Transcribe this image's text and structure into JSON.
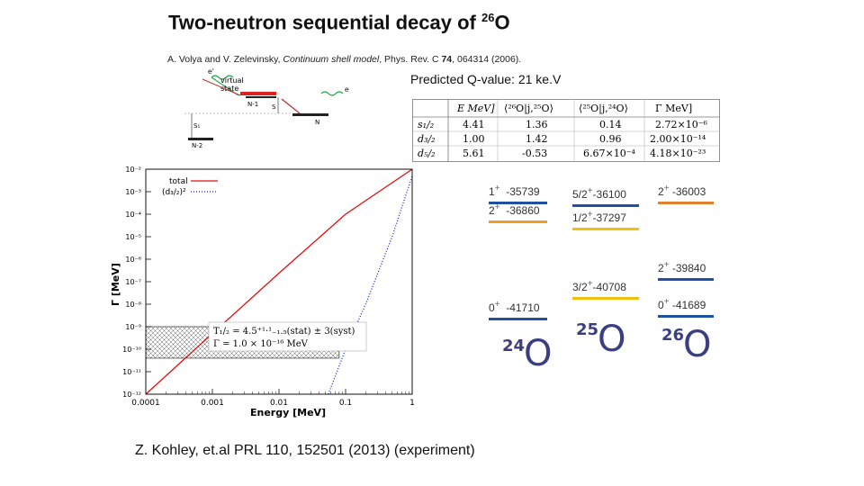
{
  "slide": {
    "title_text": "Two-neutron sequential decay of ",
    "title_mass": "26",
    "title_element": "O",
    "reference_authors": "A. Volya and V. Zelevinsky, ",
    "reference_title": "Continuum shell model",
    "reference_journal": ", Phys. Rev. C ",
    "reference_volume": "74",
    "reference_tail": ", 064314 (2006).",
    "qvalue": "Predicted Q-value: 21 ke.V",
    "citation": "Z. Kohley, et.al PRL 110, 152501 (2013) (experiment)"
  },
  "scheme": {
    "virtual_state": "virtual\nstate",
    "labels": [
      "N-1",
      "N-2",
      "N",
      "S",
      "S₁",
      "e"
    ],
    "colors": {
      "virtual": "#e02020",
      "arrow": "#c03030",
      "wave": "#22aa44"
    }
  },
  "table": {
    "headers": [
      "E MeV]",
      "⟨²⁶O|j,²⁵O⟩",
      "⟨²⁵O|j,²⁴O⟩",
      "Γ MeV]"
    ],
    "rows": [
      {
        "orbit": "s₁/₂",
        "E": "4.41",
        "c26": "1.36",
        "c25": "0.14",
        "gamma": "2.72×10⁻⁶"
      },
      {
        "orbit": "d₃/₂",
        "E": "1.00",
        "c26": "1.42",
        "c25": "0.96",
        "gamma": "2.00×10⁻¹⁴"
      },
      {
        "orbit": "d₅/₂",
        "E": "5.61",
        "c26": "-0.53",
        "c25": "6.67×10⁻⁴",
        "gamma": "4.18×10⁻²³"
      }
    ]
  },
  "chart_data": {
    "type": "line",
    "xlabel": "Energy [MeV]",
    "ylabel": "Γ [MeV]",
    "x_scale": "log",
    "y_scale": "log",
    "xlim": [
      0.0001,
      1
    ],
    "ylim": [
      1e-12,
      0.01
    ],
    "x_ticks": [
      "0.0001",
      "0.001",
      "0.01",
      "0.1",
      "1"
    ],
    "y_ticks": [
      "10⁻²",
      "10⁻³",
      "10⁻⁴",
      "10⁻⁵",
      "10⁻⁶",
      "10⁻⁷",
      "10⁻⁸",
      "10⁻⁹",
      "10⁻¹⁰",
      "10⁻¹¹",
      "10⁻¹²"
    ],
    "legend_position": "top-left",
    "series": [
      {
        "name": "total",
        "style": "solid",
        "color": "#e01010",
        "points": [
          [
            0.0001,
            1e-12
          ],
          [
            0.001,
            5e-10
          ],
          [
            0.01,
            2.4e-07
          ],
          [
            0.1,
            0.0001
          ],
          [
            1,
            0.01
          ]
        ]
      },
      {
        "name": "(d₃/₂)²",
        "style": "dotted",
        "color": "#1020d0",
        "points": [
          [
            0.055,
            1e-12
          ],
          [
            0.1,
            1e-10
          ],
          [
            0.2,
            1e-08
          ],
          [
            0.5,
            1e-05
          ],
          [
            1,
            0.005
          ]
        ]
      }
    ],
    "band": {
      "ylim": [
        4e-11,
        1e-09
      ],
      "xlim": [
        0.0001,
        0.08
      ]
    },
    "annotation_line1": "T₁/₂ = 4.5⁺¹·¹₋₁.₅(stat) ± 3(syst)",
    "annotation_line2": "Γ = 1.0 × 10⁻¹⁶ MeV"
  },
  "levels": {
    "o24": {
      "mass": "24",
      "element": "O",
      "items": [
        {
          "label": "1",
          "parity": "+",
          "value": "-35739",
          "color": "#2050a0"
        },
        {
          "label": "2",
          "parity": "+",
          "value": "-36860",
          "color": "#f0a020"
        },
        {
          "label": "0",
          "parity": "+",
          "value": "-41710",
          "color": "#2050a0"
        }
      ]
    },
    "o25": {
      "mass": "25",
      "element": "O",
      "items": [
        {
          "label": "5/2",
          "parity": "+",
          "value": "-36100",
          "color": "#2050a0"
        },
        {
          "label": "1/2",
          "parity": "+",
          "value": "-37297",
          "color": "#f0c010"
        },
        {
          "label": "3/2",
          "parity": "+",
          "value": "-40708",
          "color": "#f0c010"
        }
      ]
    },
    "o26": {
      "mass": "26",
      "element": "O",
      "items": [
        {
          "label": "2",
          "parity": "+",
          "value": "-36003",
          "color": "#e08030"
        },
        {
          "label": "2",
          "parity": "+",
          "value": "-39840",
          "color": "#2050a0"
        },
        {
          "label": "0",
          "parity": "+",
          "value": "-41689",
          "color": "#2050a0"
        }
      ]
    }
  }
}
